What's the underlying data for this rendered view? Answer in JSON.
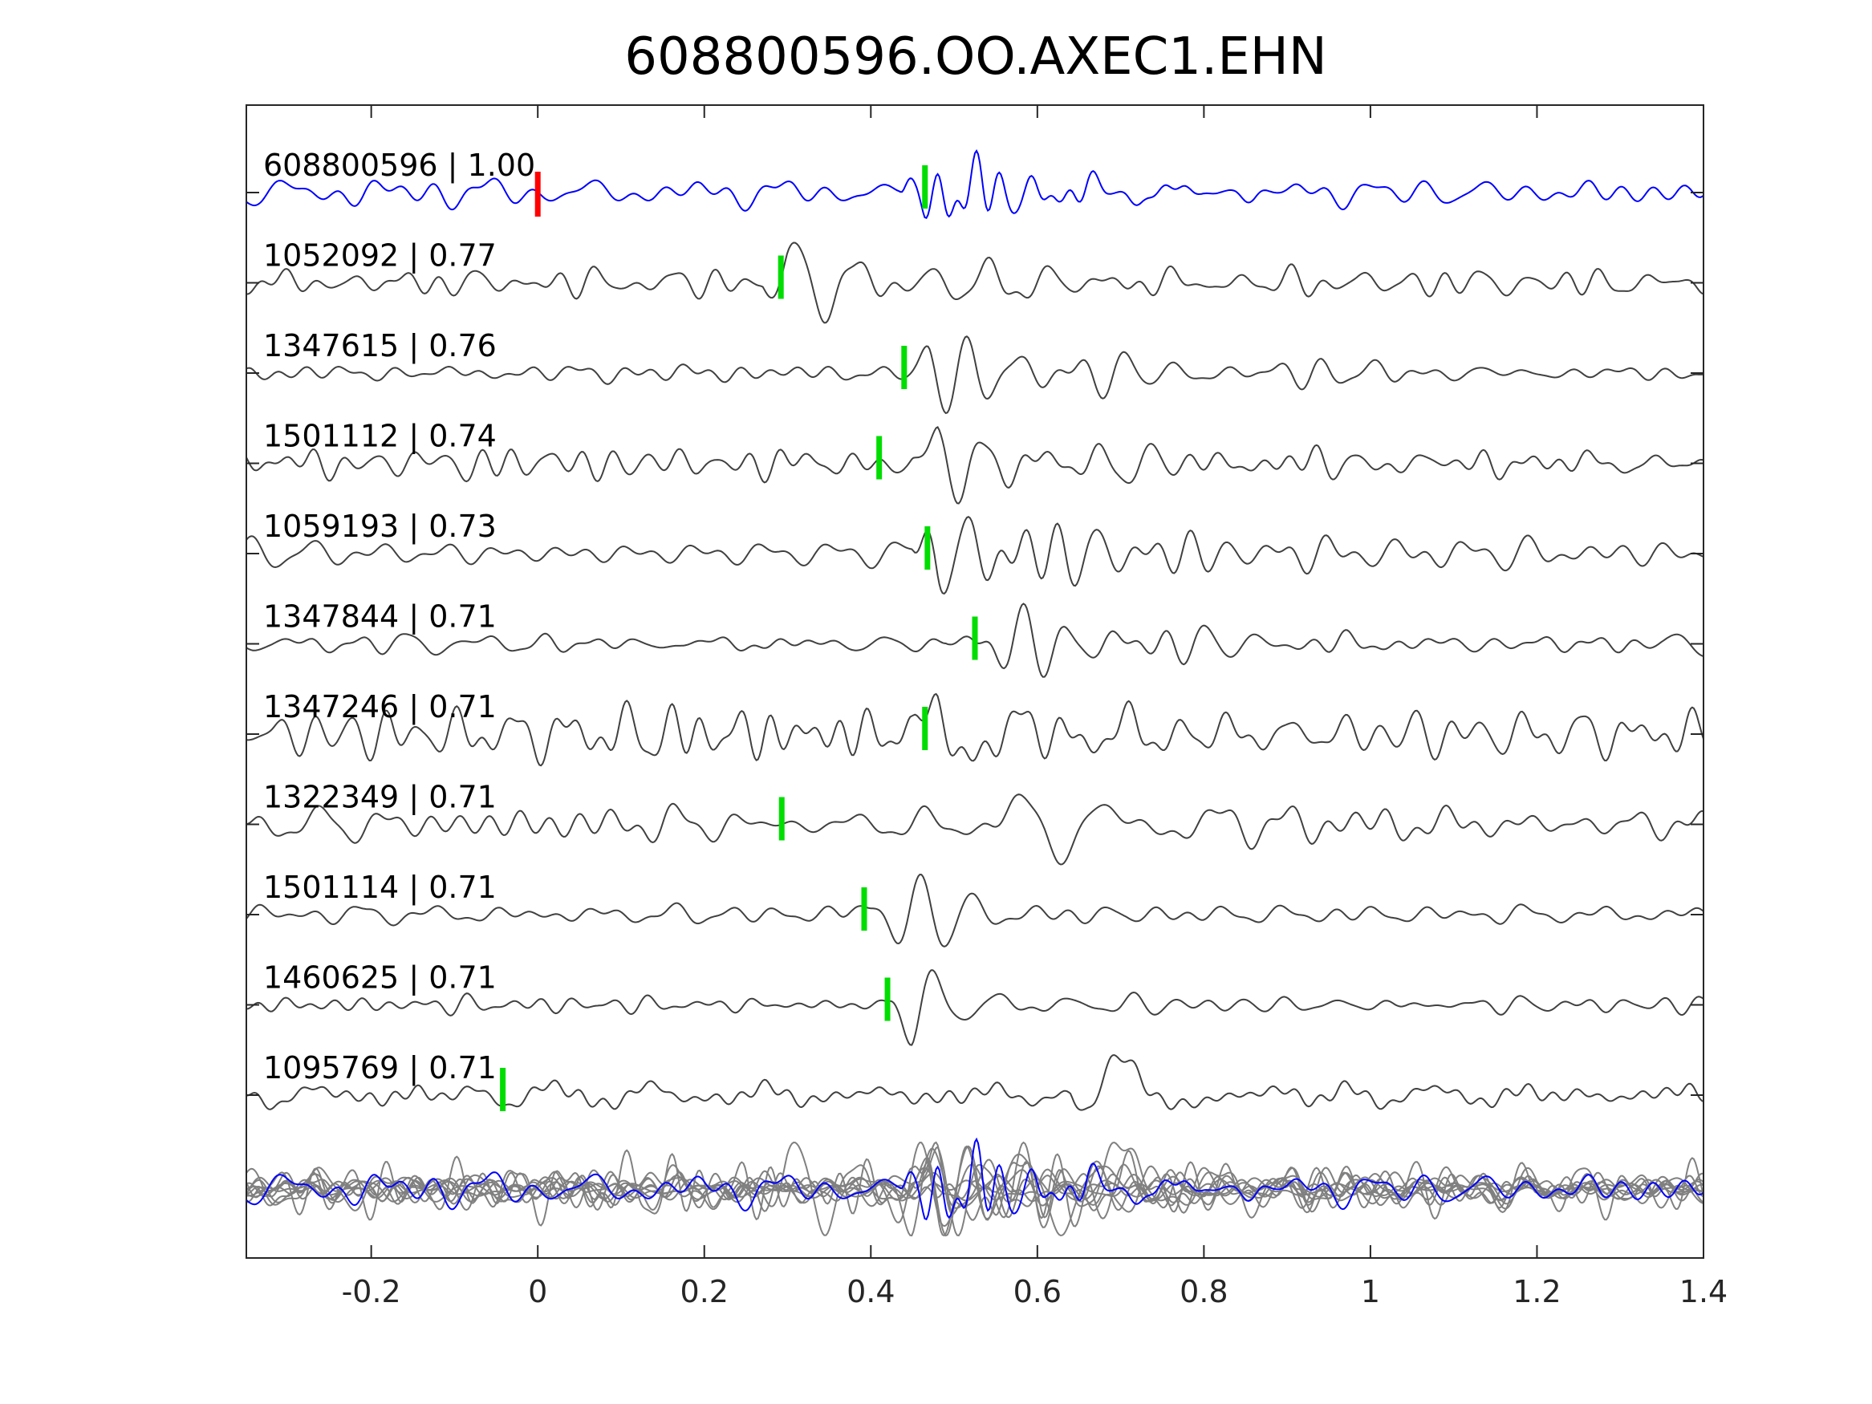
{
  "chart_data": {
    "type": "line",
    "title": "608800596.OO.AXEC1.EHN",
    "xlabel": "",
    "ylabel": "",
    "xlim": [
      -0.35,
      1.4
    ],
    "xticks": [
      -0.2,
      0,
      0.2,
      0.4,
      0.6,
      0.8,
      1.0,
      1.2,
      1.4
    ],
    "xtick_labels": [
      "-0.2",
      "0",
      "0.2",
      "0.4",
      "0.6",
      "0.8",
      "1",
      "1.2",
      "1.4"
    ],
    "grid": false,
    "colors": {
      "template": "#0000ff",
      "neighbor": "#404040",
      "stack_neighbor": "#808080",
      "template_pick": "#ff0000",
      "neighbor_pick": "#00dd00"
    },
    "template_pick_x": 0.0,
    "series": [
      {
        "id": "608800596",
        "label": "608800596 | 1.00",
        "cc": 1.0,
        "pick_x": 0.465,
        "arrival": 0.465,
        "seed": 11,
        "freq": 34,
        "amp": 1.0,
        "decay": 0.12,
        "template": true
      },
      {
        "id": "1052092",
        "label": "1052092 | 0.77",
        "cc": 0.77,
        "pick_x": 0.292,
        "arrival": 0.3,
        "seed": 23,
        "freq": 16,
        "amp": 1.0,
        "decay": 0.22
      },
      {
        "id": "1347615",
        "label": "1347615 | 0.76",
        "cc": 0.76,
        "pick_x": 0.44,
        "arrival": 0.47,
        "seed": 37,
        "freq": 20,
        "amp": 1.0,
        "decay": 0.3
      },
      {
        "id": "1501112",
        "label": "1501112 | 0.74",
        "cc": 0.74,
        "pick_x": 0.41,
        "arrival": 0.48,
        "seed": 41,
        "freq": 19,
        "amp": 0.9,
        "decay": 0.35
      },
      {
        "id": "1059193",
        "label": "1059193 | 0.73",
        "cc": 0.73,
        "pick_x": 0.468,
        "arrival": 0.48,
        "seed": 53,
        "freq": 24,
        "amp": 0.9,
        "decay": 0.25
      },
      {
        "id": "1347844",
        "label": "1347844 | 0.71",
        "cc": 0.71,
        "pick_x": 0.525,
        "arrival": 0.52,
        "seed": 67,
        "freq": 22,
        "amp": 1.0,
        "decay": 0.3
      },
      {
        "id": "1347246",
        "label": "1347246 | 0.71",
        "cc": 0.71,
        "pick_x": 0.465,
        "arrival": 0.48,
        "seed": 71,
        "freq": 11,
        "amp": 1.0,
        "decay": 0.12
      },
      {
        "id": "1322349",
        "label": "1322349 | 0.71",
        "cc": 0.71,
        "pick_x": 0.293,
        "arrival": 0.53,
        "seed": 83,
        "freq": 9,
        "amp": 1.0,
        "decay": 0.16
      },
      {
        "id": "1501114",
        "label": "1501114 | 0.71",
        "cc": 0.71,
        "pick_x": 0.392,
        "arrival": 0.39,
        "seed": 97,
        "freq": 17,
        "amp": 1.0,
        "decay": 0.25
      },
      {
        "id": "1460625",
        "label": "1460625 | 0.71",
        "cc": 0.71,
        "pick_x": 0.42,
        "arrival": 0.45,
        "seed": 101,
        "freq": 16,
        "amp": 1.0,
        "decay": 0.2
      },
      {
        "id": "1095769",
        "label": "1095769 | 0.71",
        "cc": 0.71,
        "pick_x": -0.042,
        "arrival": 0.67,
        "seed": 113,
        "freq": 7,
        "amp": 1.0,
        "decay": 0.1
      }
    ]
  }
}
